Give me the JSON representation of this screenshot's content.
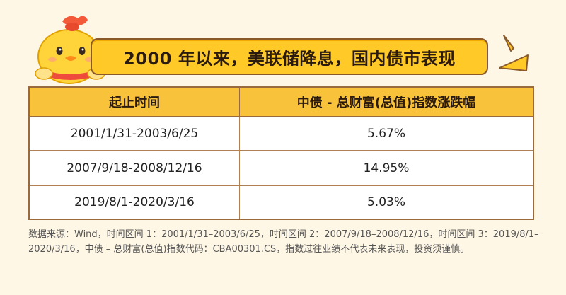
{
  "title": "2000 年以来，美联储降息，国内债市表现",
  "table": {
    "headers": [
      "起止时间",
      "中债 - 总财富(总值)指数涨跌幅"
    ],
    "rows": [
      {
        "period": "2001/1/31-2003/6/25",
        "change": "5.67%"
      },
      {
        "period": "2007/9/18-2008/12/16",
        "change": "14.95%"
      },
      {
        "period": "2019/8/1-2020/3/16",
        "change": "5.03%"
      }
    ]
  },
  "footnote": "数据来源：Wind，时间区间 1：2001/1/31–2003/6/25，时间区间 2：2007/9/18–2008/12/16，时间区间 3：2019/8/1–2020/3/16，中债 – 总财富(总值)指数代码：CBA00301.CS，指数过往业绩不代表未来表现，投资须谨慎。",
  "icons": {
    "mascot": "chick-mascot-icon",
    "spark": "sparkle-icon"
  },
  "colors": {
    "background": "#fff7e6",
    "banner": "#ffca28",
    "header": "#f8c33b",
    "border": "#9a6a3c"
  }
}
